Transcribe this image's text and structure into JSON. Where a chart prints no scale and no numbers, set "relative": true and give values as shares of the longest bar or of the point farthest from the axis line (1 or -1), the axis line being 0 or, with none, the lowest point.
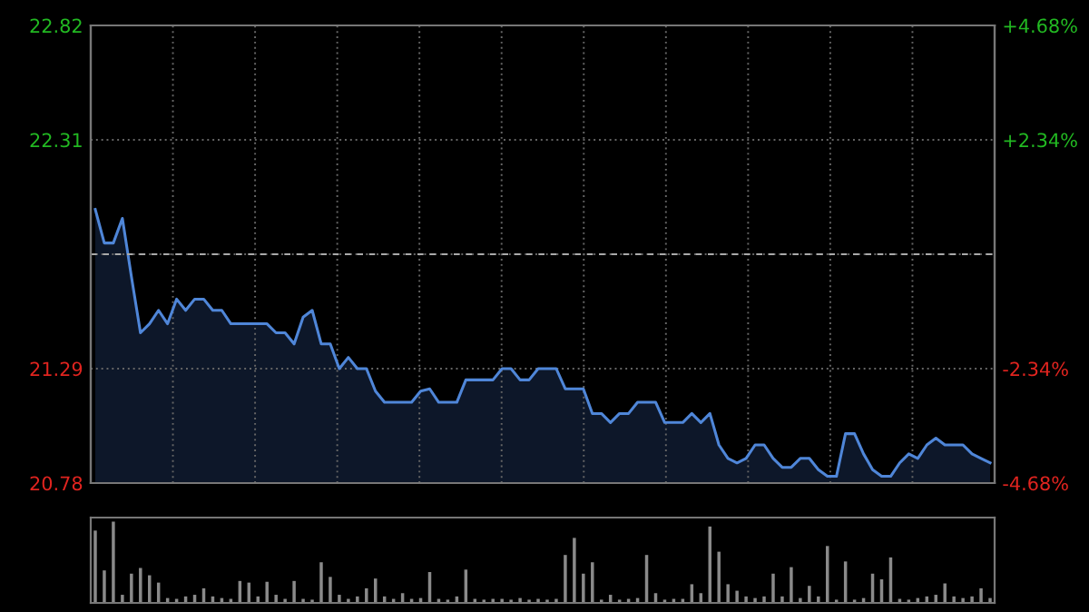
{
  "chart_data": [
    {
      "type": "area",
      "categories": [
        null,
        null,
        null,
        null,
        null,
        null,
        null,
        null,
        null,
        null,
        null,
        null,
        null,
        null,
        null,
        null,
        null,
        null,
        null,
        null,
        null,
        null,
        null,
        null,
        null,
        null,
        null,
        null,
        null,
        null,
        null,
        null,
        null,
        null,
        null,
        null,
        null,
        null,
        null,
        null,
        null,
        null,
        null,
        null,
        null,
        null,
        null,
        null,
        null,
        null,
        null,
        null,
        null,
        null,
        null,
        null,
        null,
        null,
        null,
        null,
        null,
        null,
        null,
        null,
        null,
        null,
        null,
        null,
        null,
        null,
        null,
        null,
        null,
        null,
        null,
        null,
        null,
        null,
        null,
        null,
        null,
        null,
        null,
        null,
        null,
        null,
        null,
        null,
        null,
        null,
        null,
        null,
        null,
        null,
        null,
        null,
        null,
        null,
        null,
        null
      ],
      "series": [
        {
          "color": "#4f86d8",
          "values": [
            22.0,
            21.85,
            21.85,
            21.96,
            21.7,
            21.45,
            21.49,
            21.55,
            21.49,
            21.6,
            21.55,
            21.6,
            21.6,
            21.55,
            21.55,
            21.49,
            21.49,
            21.49,
            21.49,
            21.49,
            21.45,
            21.45,
            21.4,
            21.52,
            21.55,
            21.4,
            21.4,
            21.29,
            21.34,
            21.29,
            21.29,
            21.19,
            21.14,
            21.14,
            21.14,
            21.14,
            21.19,
            21.2,
            21.14,
            21.14,
            21.14,
            21.24,
            21.24,
            21.24,
            21.24,
            21.29,
            21.29,
            21.24,
            21.24,
            21.29,
            21.29,
            21.29,
            21.2,
            21.2,
            21.2,
            21.09,
            21.09,
            21.05,
            21.09,
            21.09,
            21.14,
            21.14,
            21.14,
            21.05,
            21.05,
            21.05,
            21.09,
            21.05,
            21.09,
            20.95,
            20.89,
            20.87,
            20.89,
            20.95,
            20.95,
            20.89,
            20.85,
            20.85,
            20.89,
            20.89,
            20.84,
            20.81,
            20.81,
            21.0,
            21.0,
            20.91,
            20.84,
            20.81,
            20.81,
            20.87,
            20.91,
            20.89,
            20.95,
            20.98,
            20.95,
            20.95,
            20.95,
            20.91,
            20.89,
            20.87
          ]
        }
      ],
      "ylim": [
        20.78,
        22.82
      ],
      "yticks": [
        22.82,
        22.31,
        {
          "value": 21.8,
          "label": null
        },
        21.29,
        20.78
      ],
      "y2lim": [
        -4.68,
        4.68
      ],
      "y2ticks": [
        {
          "value": 4.68,
          "label": "+4.68%"
        },
        {
          "value": 2.34,
          "label": "+2.34%"
        },
        {
          "value": -2.34,
          "label": "-2.34%"
        },
        {
          "value": -4.68,
          "label": "-4.68%"
        }
      ],
      "ref_lines": [
        {
          "axis": "y",
          "value": 21.8,
          "line_style": "dashed"
        }
      ],
      "grid": true
    },
    {
      "type": "bar",
      "relative": true,
      "categories": [
        null,
        null,
        null,
        null,
        null,
        null,
        null,
        null,
        null,
        null,
        null,
        null,
        null,
        null,
        null,
        null,
        null,
        null,
        null,
        null,
        null,
        null,
        null,
        null,
        null,
        null,
        null,
        null,
        null,
        null,
        null,
        null,
        null,
        null,
        null,
        null,
        null,
        null,
        null,
        null,
        null,
        null,
        null,
        null,
        null,
        null,
        null,
        null,
        null,
        null,
        null,
        null,
        null,
        null,
        null,
        null,
        null,
        null,
        null,
        null,
        null,
        null,
        null,
        null,
        null,
        null,
        null,
        null,
        null,
        null,
        null,
        null,
        null,
        null,
        null,
        null,
        null,
        null,
        null,
        null,
        null,
        null,
        null,
        null,
        null,
        null,
        null,
        null,
        null,
        null,
        null,
        null,
        null,
        null,
        null,
        null,
        null,
        null,
        null,
        null
      ],
      "series": [
        {
          "color": "#8a8a8a",
          "values": [
            0.89,
            0.4,
            1.0,
            0.1,
            0.36,
            0.43,
            0.34,
            0.25,
            0.06,
            0.05,
            0.08,
            0.1,
            0.18,
            0.08,
            0.06,
            0.05,
            0.27,
            0.25,
            0.08,
            0.26,
            0.1,
            0.05,
            0.27,
            0.05,
            0.04,
            0.5,
            0.32,
            0.1,
            0.05,
            0.08,
            0.18,
            0.3,
            0.08,
            0.05,
            0.12,
            0.05,
            0.06,
            0.38,
            0.05,
            0.04,
            0.08,
            0.41,
            0.05,
            0.04,
            0.05,
            0.05,
            0.04,
            0.06,
            0.04,
            0.05,
            0.04,
            0.05,
            0.59,
            0.8,
            0.36,
            0.5,
            0.04,
            0.1,
            0.04,
            0.05,
            0.06,
            0.59,
            0.12,
            0.04,
            0.05,
            0.05,
            0.23,
            0.12,
            0.94,
            0.63,
            0.23,
            0.15,
            0.08,
            0.06,
            0.08,
            0.36,
            0.08,
            0.44,
            0.06,
            0.21,
            0.08,
            0.7,
            0.04,
            0.51,
            0.04,
            0.06,
            0.36,
            0.29,
            0.56,
            0.05,
            0.04,
            0.06,
            0.08,
            0.1,
            0.24,
            0.08,
            0.06,
            0.08,
            0.18,
            0.06
          ]
        }
      ]
    }
  ]
}
